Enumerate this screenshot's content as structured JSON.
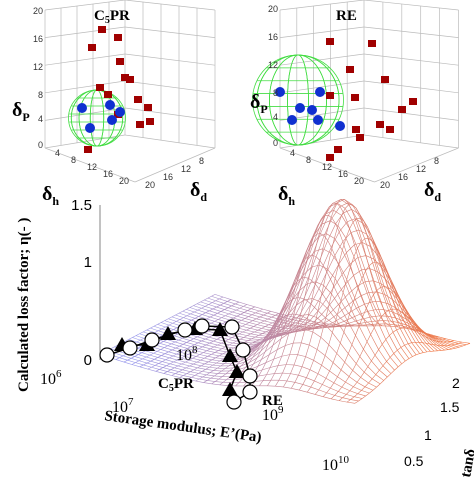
{
  "panels": [
    {
      "title": {
        "main": "C",
        "sub": "5",
        "rest": "PR"
      },
      "z_label": {
        "main": "δ",
        "sub": "P"
      },
      "h_label": {
        "main": "δ",
        "sub": "h"
      },
      "d_label": {
        "main": "δ",
        "sub": "d"
      },
      "z_ticks": [
        "20",
        "16",
        "12",
        "8",
        "4",
        "0"
      ],
      "h_ticks": [
        "4",
        "8",
        "12",
        "16",
        "20"
      ],
      "d_ticks": [
        "20",
        "16",
        "12",
        "8"
      ]
    },
    {
      "title": {
        "main": "RE"
      },
      "z_label": {
        "main": "δ",
        "sub": "P"
      },
      "h_label": {
        "main": "δ",
        "sub": "h"
      },
      "d_label": {
        "main": "δ",
        "sub": "d"
      },
      "z_ticks": [
        "20",
        "16",
        "12",
        "8",
        "4",
        "0"
      ],
      "h_ticks": [
        "4",
        "8",
        "12",
        "16",
        "20"
      ],
      "d_ticks": [
        "20",
        "16",
        "12",
        "8"
      ]
    }
  ],
  "surface": {
    "y_label": "Calculated loss factor; η(- )",
    "x_label": "Storage modulus; E’(Pa)",
    "y_ticks": [
      "1.5",
      "1",
      "0"
    ],
    "x_ticks": [
      {
        "base": "10",
        "exp": "6"
      },
      {
        "base": "10",
        "exp": "7"
      },
      {
        "base": "10",
        "exp": "8"
      },
      {
        "base": "10",
        "exp": "9"
      },
      {
        "base": "10",
        "exp": "10"
      }
    ],
    "z_label": "tanδ",
    "z_ticks": [
      "0.5",
      "1",
      "1.5",
      "2"
    ],
    "annotations": [
      {
        "main": "C",
        "sub": "5",
        "rest": "PR"
      },
      {
        "main": "RE"
      }
    ]
  }
}
